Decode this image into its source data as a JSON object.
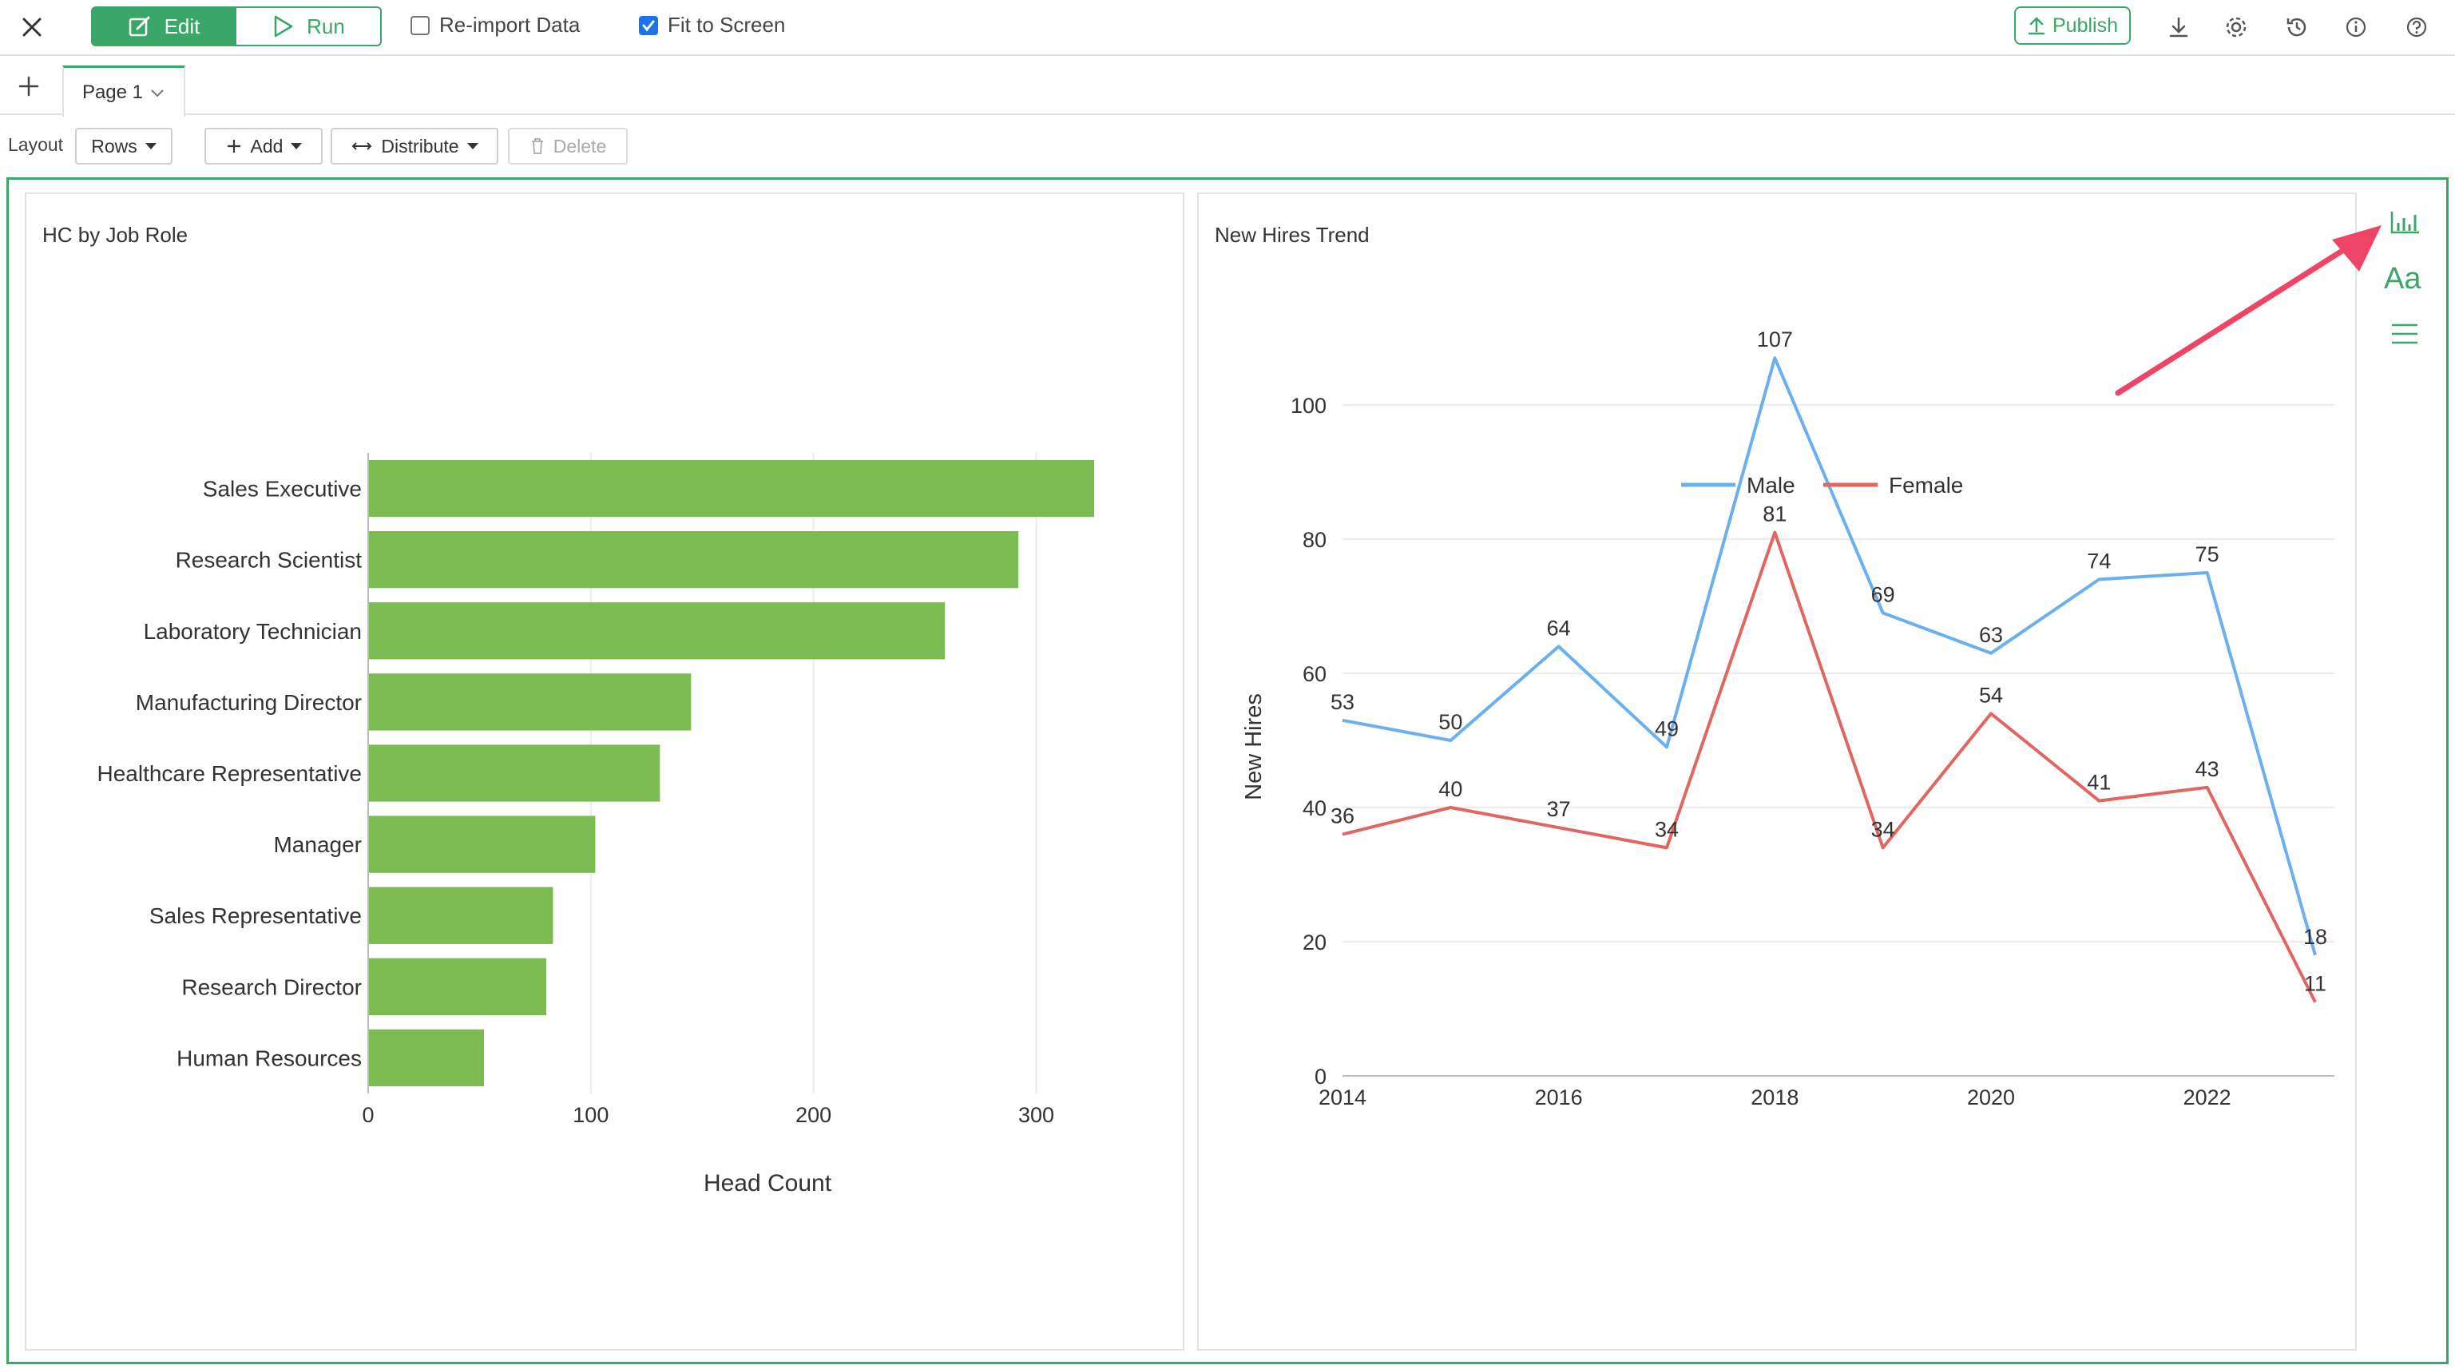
{
  "toolbar": {
    "edit_label": "Edit",
    "run_label": "Run",
    "reimport_label": "Re-import Data",
    "reimport_checked": false,
    "fit_label": "Fit to Screen",
    "fit_checked": true,
    "publish_label": "Publish"
  },
  "tabs": {
    "page_label": "Page 1"
  },
  "layout_bar": {
    "layout_label": "Layout",
    "rows_label": "Rows",
    "add_label": "Add",
    "distribute_label": "Distribute",
    "delete_label": "Delete"
  },
  "colors": {
    "accent": "#3aa668",
    "bar": "#7cba52",
    "male": "#6ab0f0",
    "female": "#e06660",
    "annotation_arrow": "#ee4466"
  },
  "icons": [
    "close-icon",
    "edit-icon",
    "play-icon",
    "upload-icon",
    "download-icon",
    "gear-icon",
    "history-icon",
    "info-icon",
    "help-icon",
    "plus-icon",
    "chevron-down-icon",
    "trash-icon",
    "arrows-horizontal-icon",
    "bar-chart-icon",
    "font-icon",
    "menu-icon"
  ],
  "cards": {
    "hc_title": "HC by Job Role",
    "trend_title": "New Hires Trend"
  },
  "chart_data": [
    {
      "type": "bar",
      "orientation": "horizontal",
      "title": "HC by Job Role",
      "categories": [
        "Sales Executive",
        "Research Scientist",
        "Laboratory Technician",
        "Manufacturing Director",
        "Healthcare Representative",
        "Manager",
        "Sales Representative",
        "Research Director",
        "Human Resources"
      ],
      "values": [
        326,
        292,
        259,
        145,
        131,
        102,
        83,
        80,
        52
      ],
      "xlabel": "Head Count",
      "ylabel": "",
      "xlim": [
        0,
        340
      ],
      "xticks": [
        0,
        100,
        200,
        300
      ],
      "grid": true,
      "legend": "none"
    },
    {
      "type": "line",
      "title": "New Hires Trend",
      "x": [
        2014,
        2015,
        2016,
        2017,
        2018,
        2019,
        2020,
        2021,
        2022,
        2023
      ],
      "series": [
        {
          "name": "Male",
          "values": [
            53,
            50,
            64,
            49,
            107,
            69,
            63,
            74,
            75,
            18
          ]
        },
        {
          "name": "Female",
          "values": [
            36,
            40,
            37,
            34,
            81,
            34,
            54,
            41,
            43,
            11
          ]
        }
      ],
      "xlabel": "",
      "ylabel": "New Hires",
      "ylim": [
        0,
        110
      ],
      "yticks": [
        0,
        20,
        40,
        60,
        80,
        100
      ],
      "xticks": [
        2014,
        2016,
        2018,
        2020,
        2022
      ],
      "data_labels": true,
      "grid": true,
      "legend": "top-center"
    }
  ]
}
